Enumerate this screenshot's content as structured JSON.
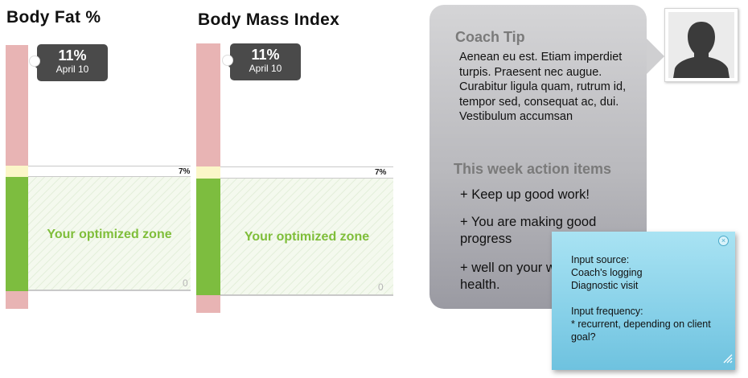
{
  "panels": [
    {
      "title": "Body Fat %",
      "callout_value": "11%",
      "callout_date": "April 10",
      "upper_label": "7%",
      "zone_label": "Your optimized zone",
      "zero_label": "0"
    },
    {
      "title": "Body Mass Index",
      "callout_value": "11%",
      "callout_date": "April 10",
      "upper_label": "7%",
      "zone_label": "Your optimized zone",
      "zero_label": "0"
    }
  ],
  "coach": {
    "tip_title": "Coach Tip",
    "tip_text": "Aenean eu est. Etiam imperdiet turpis. Praesent nec augue. Curabitur ligula quam, rutrum id, tempor sed, consequat ac, dui. Vestibulum accumsan",
    "actions_title": "This week action items",
    "actions": [
      "+ Keep up good work!",
      "+ You are making good progress",
      "+ well on your way to good health."
    ]
  },
  "avatar": {
    "icon": "user-silhouette-icon"
  },
  "note": {
    "source_label": "Input source:",
    "source_lines": [
      "Coach's logging",
      "Diagnostic visit"
    ],
    "frequency_label": "Input frequency:",
    "frequency_text": "* recurrent, depending on client goal?"
  },
  "colors": {
    "red_bar": "#e8b4b4",
    "green_bar": "#7dbd3f",
    "zone_text": "#7fbe3a",
    "callout": "#4a4a4a",
    "note": "#86d0e8"
  }
}
